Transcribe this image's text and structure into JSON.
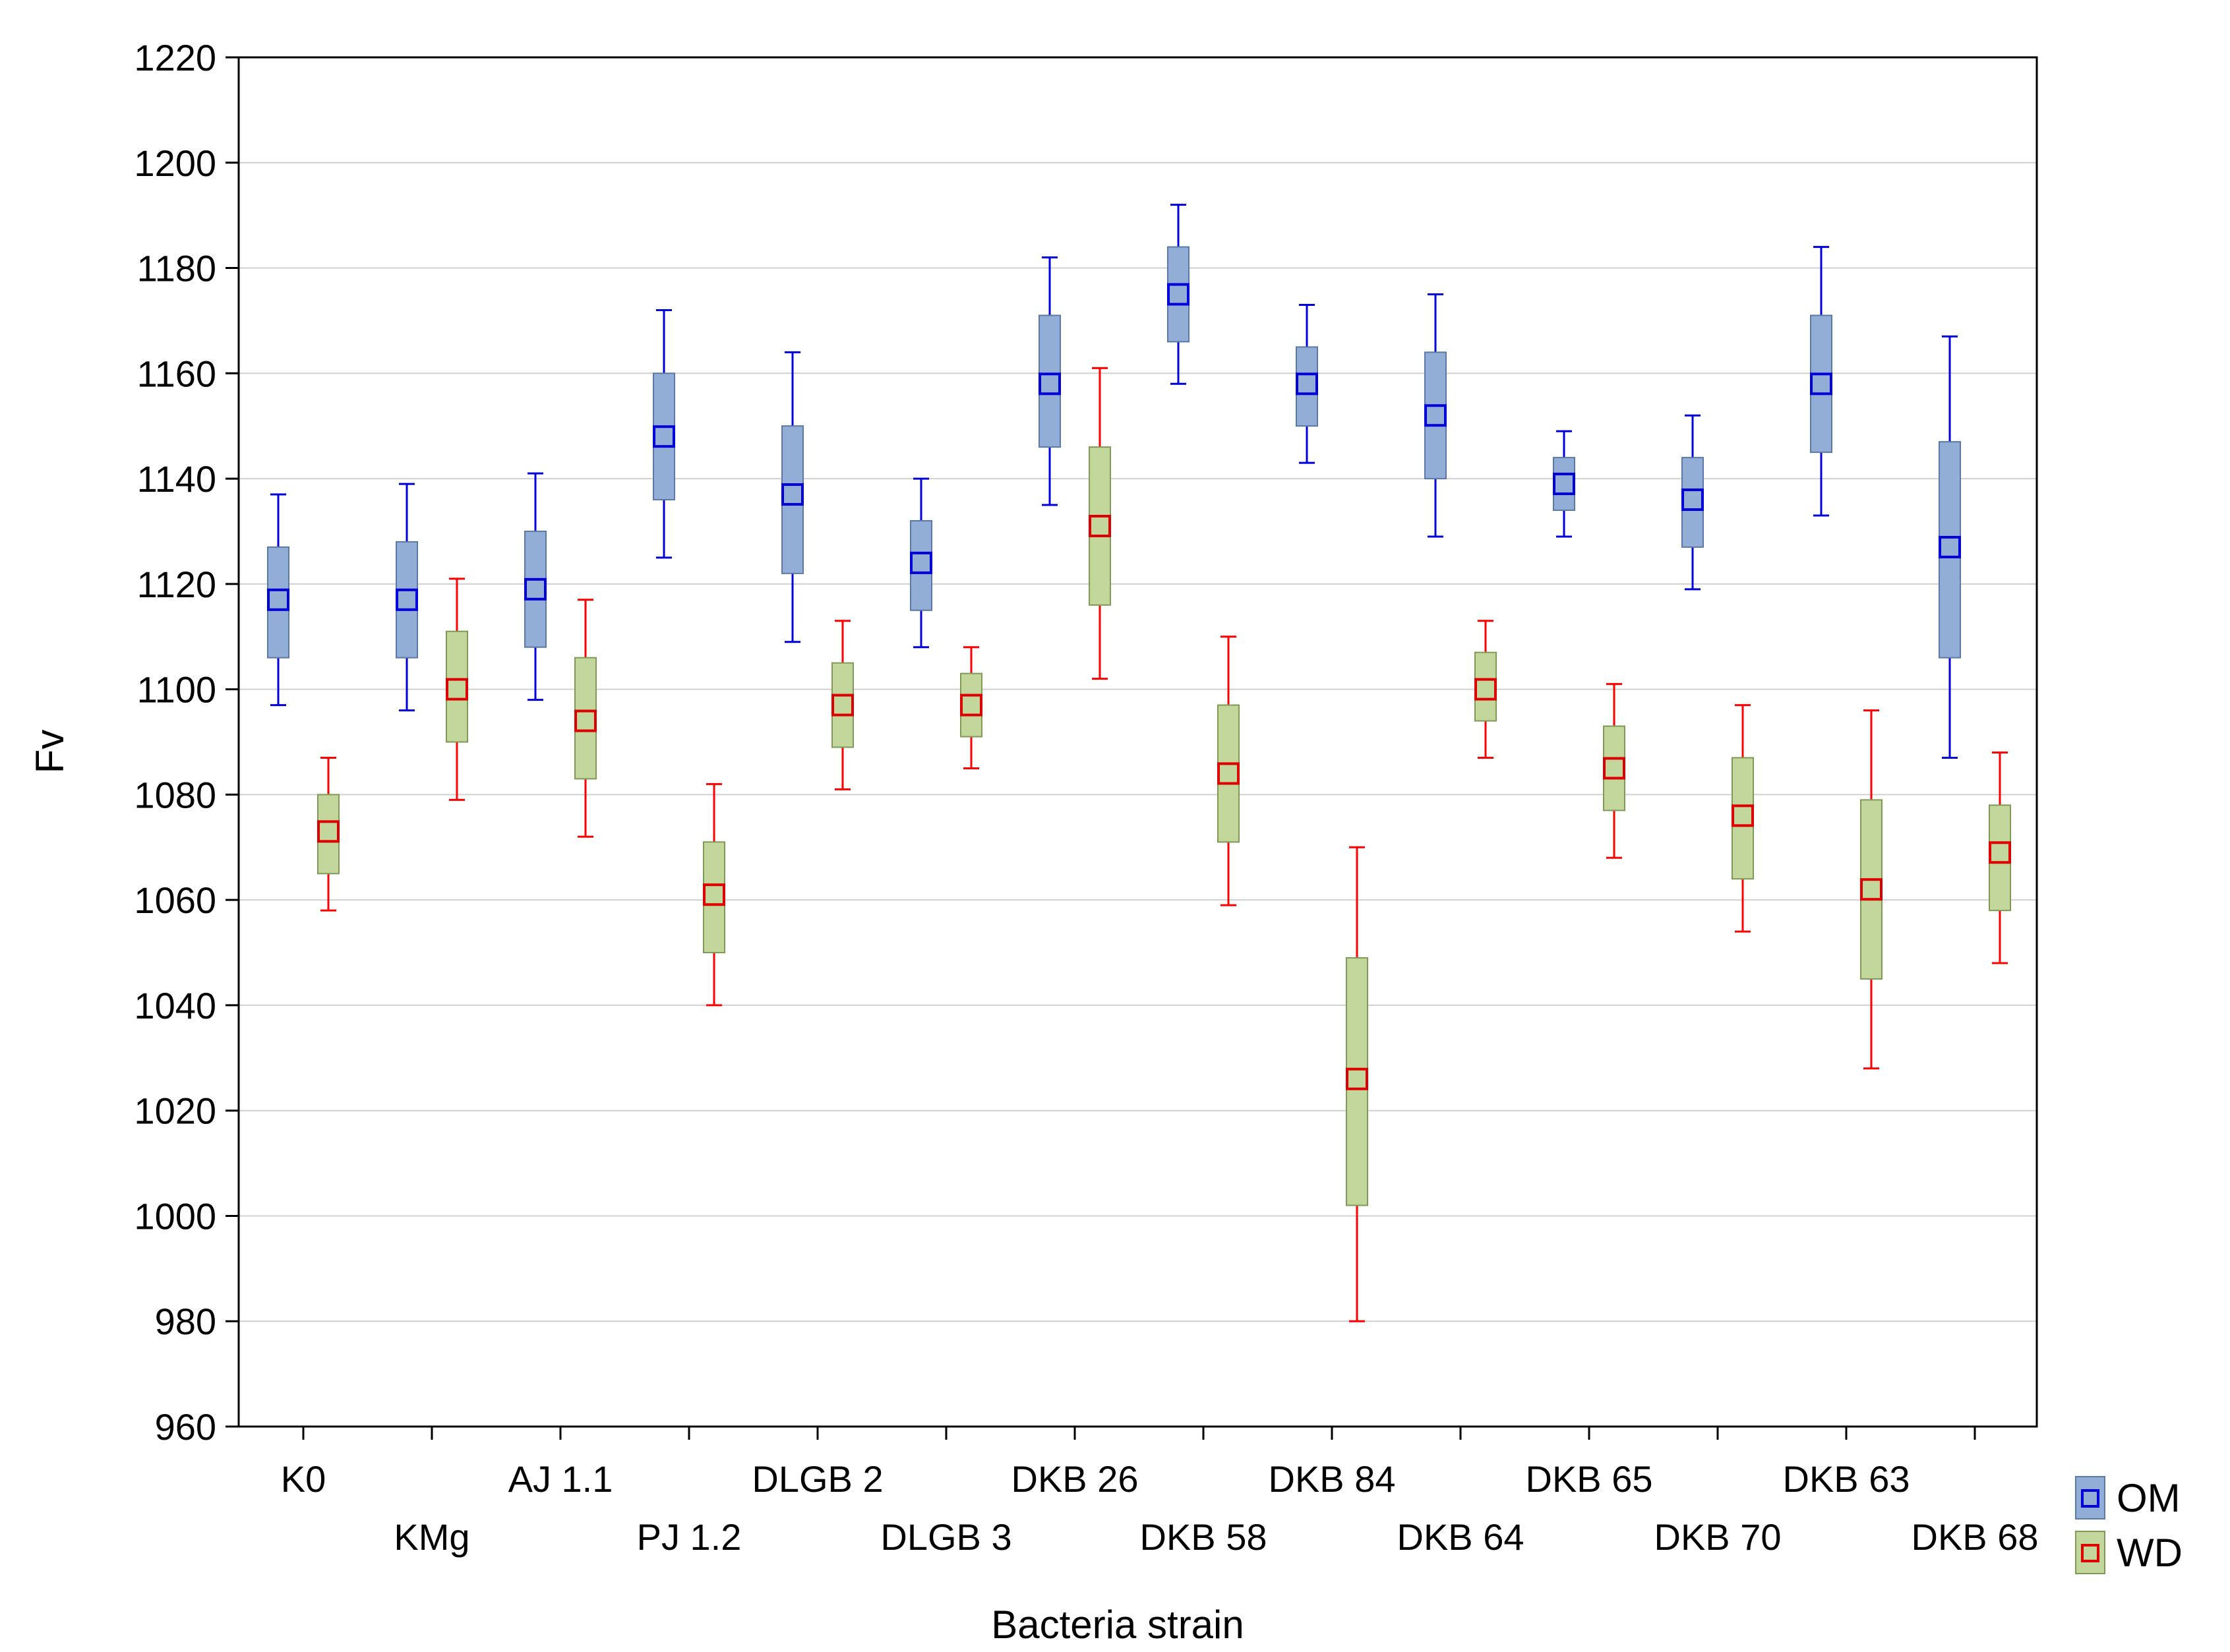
{
  "chart_data": {
    "type": "boxplot",
    "xlabel": "Bacteria strain",
    "ylabel": "Fv",
    "ylim": [
      960,
      1220
    ],
    "yticks": [
      960,
      980,
      1000,
      1020,
      1040,
      1060,
      1080,
      1100,
      1120,
      1140,
      1160,
      1180,
      1200,
      1220
    ],
    "grid": true,
    "legend_position": "bottom-right",
    "categories": [
      "K0",
      "KMg",
      "AJ 1.1",
      "PJ 1.2",
      "DLGB 2",
      "DLGB 3",
      "DKB 26",
      "DKB 58",
      "DKB 84",
      "DKB 64",
      "DKB 65",
      "DKB 70",
      "DKB 63",
      "DKB 68"
    ],
    "series": [
      {
        "name": "OM",
        "box_color": "#93aed6",
        "marker_color": "#0000dd",
        "whisker_color": "#0000dd",
        "mean": [
          1117,
          1117,
          1119,
          1148,
          1137,
          1124,
          1158,
          1175,
          1158,
          1152,
          1139,
          1136,
          1158,
          1127
        ],
        "box_low": [
          1106,
          1106,
          1108,
          1136,
          1122,
          1115,
          1146,
          1166,
          1150,
          1140,
          1134,
          1127,
          1145,
          1106
        ],
        "box_high": [
          1127,
          1128,
          1130,
          1160,
          1150,
          1132,
          1171,
          1184,
          1165,
          1164,
          1144,
          1144,
          1171,
          1147
        ],
        "whisker_low": [
          1097,
          1096,
          1098,
          1125,
          1109,
          1108,
          1135,
          1158,
          1143,
          1129,
          1129,
          1119,
          1133,
          1087
        ],
        "whisker_high": [
          1137,
          1139,
          1141,
          1172,
          1164,
          1140,
          1182,
          1192,
          1173,
          1175,
          1149,
          1152,
          1184,
          1167
        ]
      },
      {
        "name": "WD",
        "box_color": "#c3d69b",
        "marker_color": "#dd0000",
        "whisker_color": "#ff0000",
        "mean": [
          1073,
          1100,
          1094,
          1061,
          1097,
          1097,
          1131,
          1084,
          1026,
          1100,
          1085,
          1076,
          1062,
          1069
        ],
        "box_low": [
          1065,
          1090,
          1083,
          1050,
          1089,
          1091,
          1116,
          1071,
          1002,
          1094,
          1077,
          1064,
          1045,
          1058
        ],
        "box_high": [
          1080,
          1111,
          1106,
          1071,
          1105,
          1103,
          1146,
          1097,
          1049,
          1107,
          1093,
          1087,
          1079,
          1078
        ],
        "whisker_low": [
          1058,
          1079,
          1072,
          1040,
          1081,
          1085,
          1102,
          1059,
          980,
          1087,
          1068,
          1054,
          1028,
          1048
        ],
        "whisker_high": [
          1087,
          1121,
          1117,
          1082,
          1113,
          1108,
          1161,
          1110,
          1070,
          1113,
          1101,
          1097,
          1096,
          1088
        ]
      }
    ]
  }
}
